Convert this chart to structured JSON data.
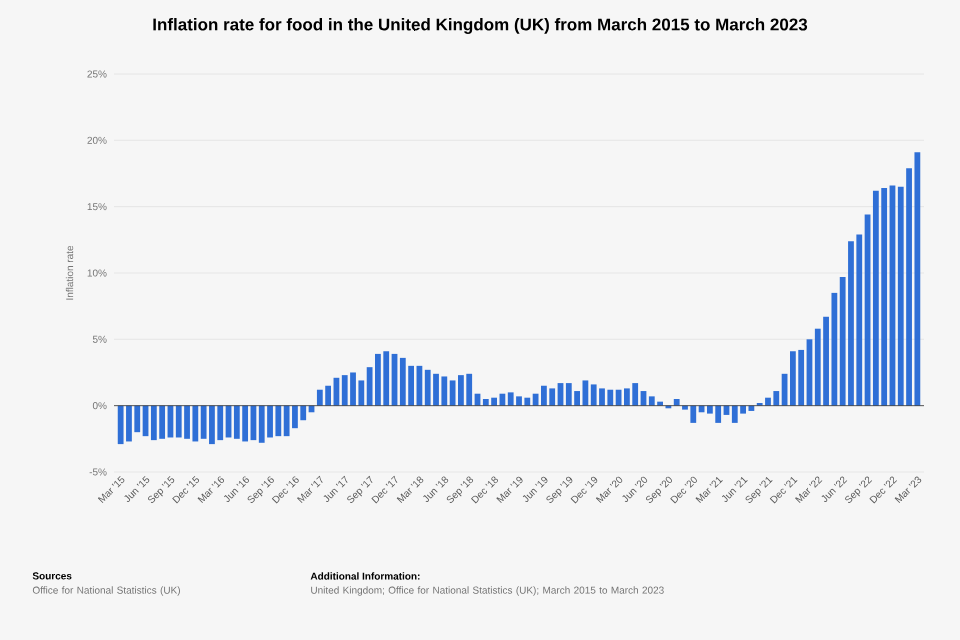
{
  "chart_data": {
    "type": "bar",
    "title": "Inflation rate for food in the United Kingdom (UK) from March 2015 to March 2023",
    "ylabel": "Inflation rate",
    "categories": [
      "Mar '15",
      null,
      null,
      "Jun '15",
      null,
      null,
      "Sep '15",
      null,
      null,
      "Dec '15",
      null,
      null,
      "Mar '16",
      null,
      null,
      "Jun '16",
      null,
      null,
      "Sep '16",
      null,
      null,
      "Dec '16",
      null,
      null,
      "Mar '17",
      null,
      null,
      "Jun '17",
      null,
      null,
      "Sep '17",
      null,
      null,
      "Dec '17",
      null,
      null,
      "Mar '18",
      null,
      null,
      "Jun '18",
      null,
      null,
      "Sep '18",
      null,
      null,
      "Dec '18",
      null,
      null,
      "Mar '19",
      null,
      null,
      "Jun '19",
      null,
      null,
      "Sep '19",
      null,
      null,
      "Dec '19",
      null,
      null,
      "Mar '20",
      null,
      null,
      "Jun '20",
      null,
      null,
      "Sep '20",
      null,
      null,
      "Dec '20",
      null,
      null,
      "Mar '21",
      null,
      null,
      "Jun '21",
      null,
      null,
      "Sep '21",
      null,
      null,
      "Dec '21",
      null,
      null,
      "Mar '22",
      null,
      null,
      "Jun '22",
      null,
      null,
      "Sep '22",
      null,
      null,
      "Dec '22",
      null,
      null,
      "Mar '23"
    ],
    "values": [
      -2.9,
      -2.7,
      -2.0,
      -2.3,
      -2.6,
      -2.5,
      -2.4,
      -2.4,
      -2.5,
      -2.7,
      -2.5,
      -2.9,
      -2.6,
      -2.4,
      -2.5,
      -2.7,
      -2.6,
      -2.8,
      -2.4,
      -2.3,
      -2.3,
      -1.7,
      -1.1,
      -0.5,
      1.2,
      1.5,
      2.1,
      2.3,
      2.5,
      1.9,
      2.9,
      3.9,
      4.1,
      3.9,
      3.6,
      3.0,
      3.0,
      2.7,
      2.4,
      2.2,
      1.9,
      2.3,
      2.4,
      0.9,
      0.5,
      0.6,
      0.9,
      1.0,
      0.7,
      0.6,
      0.9,
      1.5,
      1.3,
      1.7,
      1.7,
      1.1,
      1.9,
      1.6,
      1.3,
      1.2,
      1.2,
      1.3,
      1.7,
      1.1,
      0.7,
      0.3,
      -0.2,
      0.5,
      -0.3,
      -1.3,
      -0.5,
      -0.6,
      -1.3,
      -0.7,
      -1.3,
      -0.6,
      -0.4,
      0.2,
      0.6,
      1.1,
      2.4,
      4.1,
      4.2,
      5.0,
      5.8,
      6.7,
      8.5,
      9.7,
      12.4,
      12.9,
      14.4,
      16.2,
      16.4,
      16.6,
      16.5,
      17.9,
      19.1
    ],
    "color": "#2f6fd6",
    "ylim": [
      -5,
      25
    ],
    "yticks": [
      {
        "value": -5,
        "label": "-5%"
      },
      {
        "value": 0,
        "label": "0%"
      },
      {
        "value": 5,
        "label": "5%"
      },
      {
        "value": 10,
        "label": "10%"
      },
      {
        "value": 15,
        "label": "15%"
      },
      {
        "value": 20,
        "label": "20%"
      },
      {
        "value": 25,
        "label": "25%"
      }
    ],
    "grid": "y",
    "annotations": [
      "Sources",
      "Office for National Statistics (UK)",
      "Additional Information:",
      "United Kingdom; Office for National Statistics (UK); March 2015 to March 2023"
    ]
  }
}
